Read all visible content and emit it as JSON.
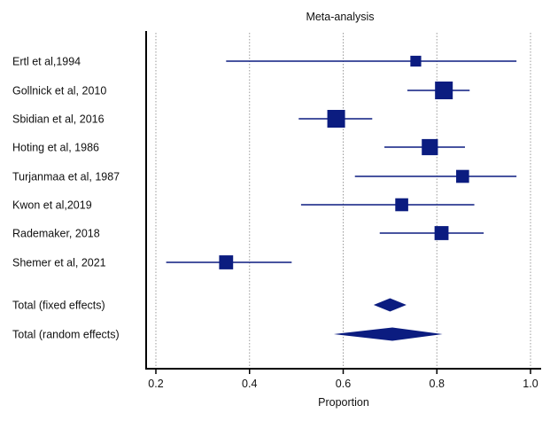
{
  "chart_data": {
    "type": "forest",
    "title": "Meta-analysis",
    "xlabel": "Proportion",
    "xlim": [
      0.18,
      1.02
    ],
    "ticks": [
      0.2,
      0.4,
      0.6,
      0.8,
      1.0
    ],
    "tick_labels": [
      "0.2",
      "0.4",
      "0.6",
      "0.8",
      "1.0"
    ],
    "grid": "vertical dotted",
    "color": "#0b1c80",
    "studies": [
      {
        "label": "Ertl et al,1994",
        "estimate": 0.755,
        "lower": 0.35,
        "upper": 0.97,
        "weight": 0.35
      },
      {
        "label": "Gollnick et al, 2010",
        "estimate": 0.815,
        "lower": 0.737,
        "upper": 0.87,
        "weight": 1.0
      },
      {
        "label": "Sbidian et al, 2016",
        "estimate": 0.585,
        "lower": 0.505,
        "upper": 0.662,
        "weight": 1.0
      },
      {
        "label": "Hoting et al, 1986",
        "estimate": 0.785,
        "lower": 0.688,
        "upper": 0.86,
        "weight": 0.85
      },
      {
        "label": "Turjanmaa et al, 1987",
        "estimate": 0.855,
        "lower": 0.625,
        "upper": 0.97,
        "weight": 0.55
      },
      {
        "label": "Kwon et al,2019",
        "estimate": 0.725,
        "lower": 0.51,
        "upper": 0.88,
        "weight": 0.55
      },
      {
        "label": "Rademaker, 2018",
        "estimate": 0.81,
        "lower": 0.678,
        "upper": 0.9,
        "weight": 0.65
      },
      {
        "label": "Shemer et al, 2021",
        "estimate": 0.35,
        "lower": 0.222,
        "upper": 0.49,
        "weight": 0.65
      }
    ],
    "totals": [
      {
        "label": "Total (fixed effects)",
        "estimate": 0.7,
        "lower": 0.665,
        "upper": 0.735
      },
      {
        "label": "Total (random effects)",
        "estimate": 0.705,
        "lower": 0.58,
        "upper": 0.812
      }
    ]
  }
}
